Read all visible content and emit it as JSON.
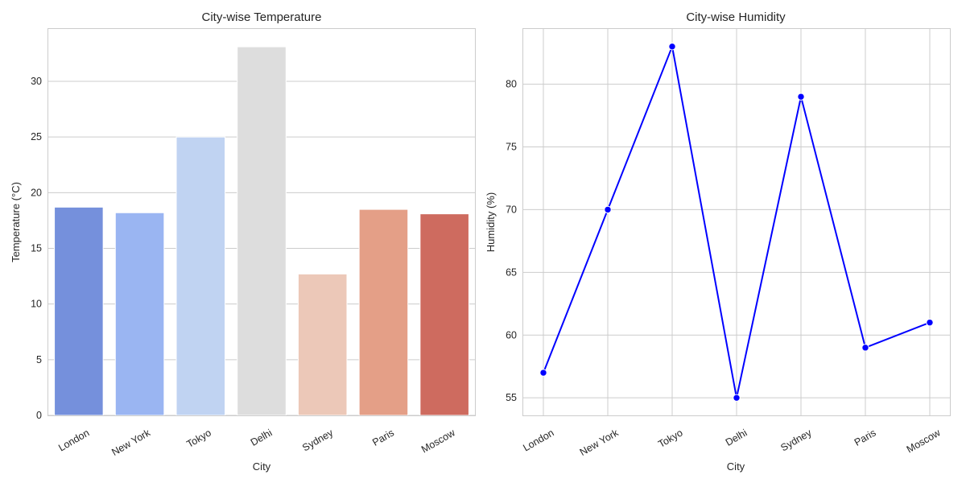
{
  "chart_data": [
    {
      "type": "bar",
      "title": "City-wise Temperature",
      "xlabel": "City",
      "ylabel": "Temperature (°C)",
      "categories": [
        "London",
        "New York",
        "Tokyo",
        "Delhi",
        "Sydney",
        "Paris",
        "Moscow"
      ],
      "values": [
        18.7,
        18.2,
        25.0,
        33.1,
        12.7,
        18.5,
        18.1
      ],
      "colors": [
        "#7590dc",
        "#9ab5f2",
        "#c0d3f2",
        "#dddddd",
        "#ecc8b8",
        "#e49f87",
        "#ce6b5f"
      ],
      "ylim": [
        0,
        34.7
      ],
      "yticks": [
        0,
        5,
        10,
        15,
        20,
        25,
        30
      ],
      "grid": true
    },
    {
      "type": "line",
      "title": "City-wise Humidity",
      "xlabel": "City",
      "ylabel": "Humidity (%)",
      "categories": [
        "London",
        "New York",
        "Tokyo",
        "Delhi",
        "Sydney",
        "Paris",
        "Moscow"
      ],
      "values": [
        57,
        70,
        83,
        55,
        79,
        59,
        61
      ],
      "color": "#0000ff",
      "ylim": [
        53.6,
        84.4
      ],
      "yticks": [
        55,
        60,
        65,
        70,
        75,
        80
      ],
      "grid": true
    }
  ]
}
